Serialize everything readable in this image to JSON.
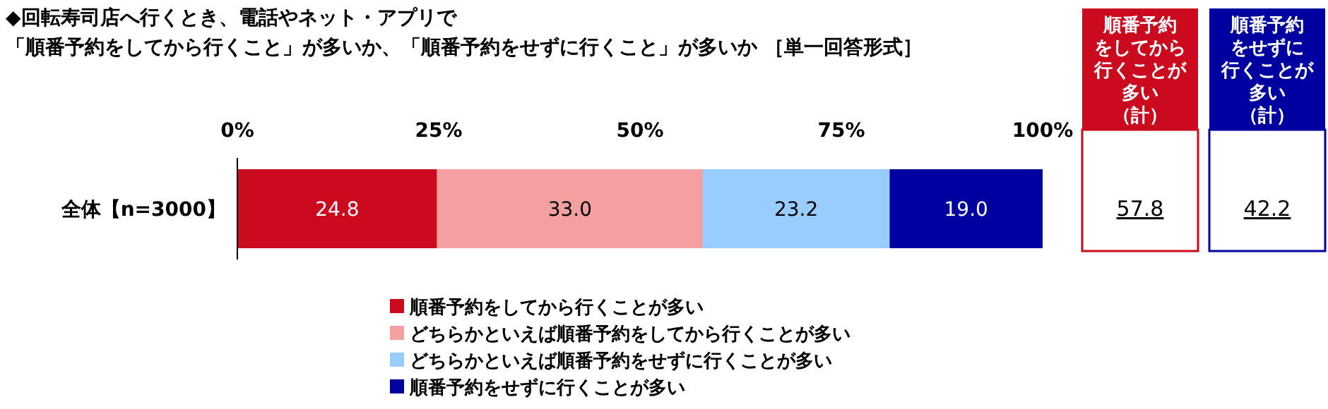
{
  "chart_data": {
    "type": "bar",
    "title": "◆回転寿司店へ行くとき、電話やネット・アプリで",
    "subtitle": "「順番予約をしてから行くこと」が多いか、「順番予約をせずに行くこと」が多いか ［単一回答形式］",
    "orientation": "horizontal",
    "stacked": true,
    "categories": [
      "全体【n=3000】"
    ],
    "series": [
      {
        "name": "順番予約をしてから行くことが多い",
        "color": "#cc0a1e",
        "values": [
          24.8
        ],
        "value_labels": [
          "24.8"
        ]
      },
      {
        "name": "どちらかといえば順番予約をしてから行くことが多い",
        "color": "#f4a0a0",
        "values": [
          33.0
        ],
        "value_labels": [
          "33.0"
        ]
      },
      {
        "name": "どちらかといえば順番予約をせずに行くことが多い",
        "color": "#99ccff",
        "values": [
          23.2
        ],
        "value_labels": [
          "23.2"
        ]
      },
      {
        "name": "順番予約をせずに行くことが多い",
        "color": "#0000a0",
        "values": [
          19.0
        ],
        "value_labels": [
          "19.0"
        ]
      }
    ],
    "xlim": [
      0,
      100
    ],
    "xticks": [
      {
        "value": 0,
        "label": "0%"
      },
      {
        "value": 25,
        "label": "25%"
      },
      {
        "value": 50,
        "label": "50%"
      },
      {
        "value": 75,
        "label": "75%"
      },
      {
        "value": 100,
        "label": "100%"
      }
    ],
    "legend": "bottom",
    "annotations": [
      "順番予約",
      "をしてから",
      "行くことが",
      "多い",
      "（計）",
      "57.8",
      "順番予約",
      "をせずに",
      "行くことが",
      "多い",
      "（計）",
      "42.2"
    ]
  }
}
